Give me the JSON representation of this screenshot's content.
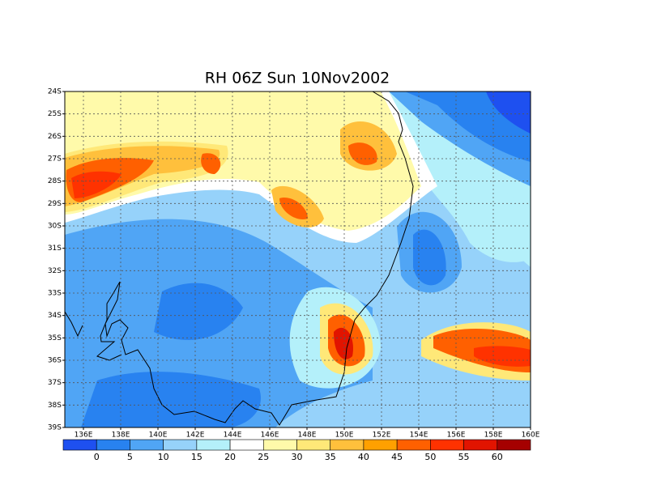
{
  "title": "RH 06Z Sun 10Nov2002",
  "map": {
    "lat_labels": [
      "24S",
      "25S",
      "26S",
      "27S",
      "28S",
      "29S",
      "30S",
      "31S",
      "32S",
      "33S",
      "34S",
      "35S",
      "36S",
      "37S",
      "38S",
      "39S"
    ],
    "lon_labels": [
      "136E",
      "138E",
      "140E",
      "142E",
      "144E",
      "146E",
      "148E",
      "150E",
      "152E",
      "154E",
      "156E",
      "158E",
      "160E"
    ]
  },
  "colorbar": {
    "levels": [
      0,
      5,
      10,
      15,
      20,
      25,
      30,
      35,
      40,
      45,
      50,
      55,
      60
    ],
    "colors": [
      "#1e50f0",
      "#2882f0",
      "#50a5f5",
      "#96d2fa",
      "#b4f0fa",
      "#ffffff",
      "#fffaaa",
      "#ffe878",
      "#ffc03c",
      "#ffa000",
      "#ff6000",
      "#ff3200",
      "#e11400",
      "#a50000"
    ]
  }
}
